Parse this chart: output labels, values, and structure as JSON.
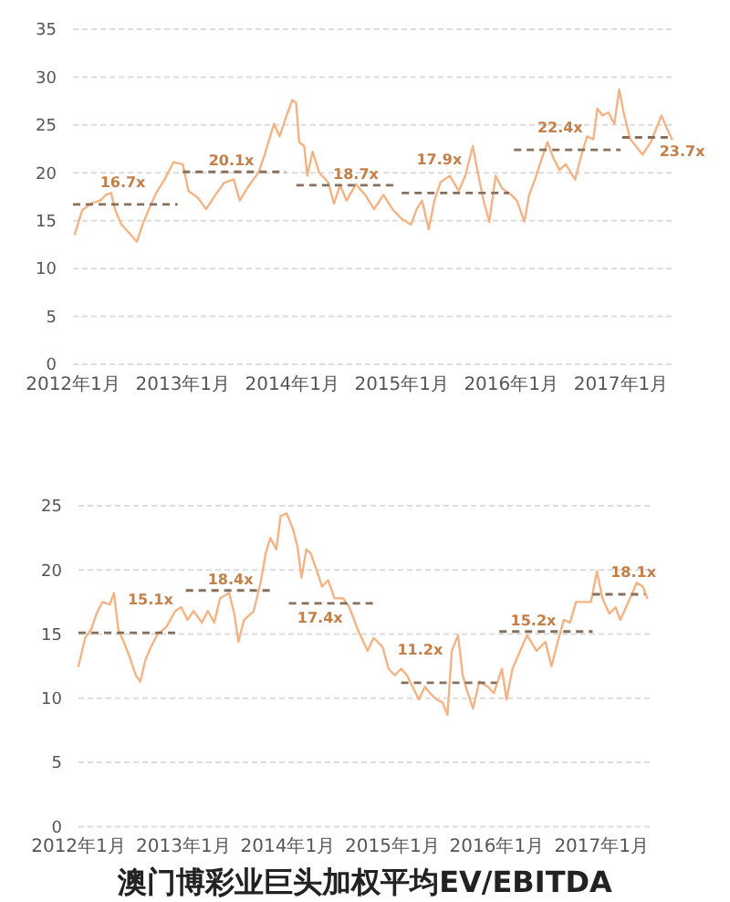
{
  "chart_data": [
    {
      "type": "line",
      "xlim": [
        "2012-01-01",
        "2017-07-01"
      ],
      "xticks": [
        {
          "value": "2012-01-01",
          "label": "2012年1月"
        },
        {
          "value": "2013-01-01",
          "label": "2013年1月"
        },
        {
          "value": "2014-01-01",
          "label": "2014年1月"
        },
        {
          "value": "2015-01-01",
          "label": "2015年1月"
        },
        {
          "value": "2016-01-01",
          "label": "2016年1月"
        },
        {
          "value": "2017-01-01",
          "label": "2017年1月"
        }
      ],
      "ylim": [
        0,
        35
      ],
      "yticks": [
        0,
        5,
        10,
        15,
        20,
        25,
        30,
        35
      ],
      "grid": "y",
      "series": [
        {
          "color": "#f4b385",
          "x": [
            "2012-01-07",
            "2012-02-01",
            "2012-03-01",
            "2012-04-01",
            "2012-04-20",
            "2012-05-07",
            "2012-05-20",
            "2012-06-10",
            "2012-07-01",
            "2012-08-01",
            "2012-08-20",
            "2012-09-10",
            "2012-10-01",
            "2012-11-01",
            "2012-12-01",
            "2013-01-01",
            "2013-01-20",
            "2013-02-20",
            "2013-03-20",
            "2013-04-20",
            "2013-05-20",
            "2013-06-20",
            "2013-07-10",
            "2013-08-10",
            "2013-09-10",
            "2013-10-01",
            "2013-11-01",
            "2013-11-20",
            "2013-12-10",
            "2014-01-01",
            "2014-01-14",
            "2014-01-24",
            "2014-02-10",
            "2014-02-20",
            "2014-03-10",
            "2014-04-01",
            "2014-05-01",
            "2014-05-20",
            "2014-06-10",
            "2014-07-01",
            "2014-08-01",
            "2014-09-01",
            "2014-10-01",
            "2014-11-01",
            "2014-12-01",
            "2015-01-01",
            "2015-02-01",
            "2015-02-20",
            "2015-03-10",
            "2015-04-01",
            "2015-04-20",
            "2015-05-10",
            "2015-06-10",
            "2015-07-10",
            "2015-08-01",
            "2015-08-26",
            "2015-09-10",
            "2015-10-01",
            "2015-10-20",
            "2015-11-10",
            "2015-12-01",
            "2016-01-01",
            "2016-01-20",
            "2016-02-14",
            "2016-03-01",
            "2016-03-20",
            "2016-04-10",
            "2016-05-01",
            "2016-05-20",
            "2016-06-10",
            "2016-07-01",
            "2016-08-01",
            "2016-08-20",
            "2016-09-10",
            "2016-10-01",
            "2016-10-14",
            "2016-11-01",
            "2016-11-20",
            "2016-12-10",
            "2016-12-26",
            "2017-01-10",
            "2017-02-01",
            "2017-02-20",
            "2017-03-14",
            "2017-04-10",
            "2017-05-01",
            "2017-05-16",
            "2017-06-01",
            "2017-06-20"
          ],
          "values": [
            13.6,
            16.1,
            16.8,
            17.1,
            17.7,
            17.9,
            16.2,
            14.6,
            13.9,
            12.8,
            14.6,
            16.2,
            17.7,
            19.3,
            21.1,
            20.9,
            18.1,
            17.4,
            16.2,
            17.7,
            19.0,
            19.3,
            17.1,
            18.7,
            20.0,
            21.9,
            25.1,
            23.8,
            25.7,
            27.6,
            27.3,
            23.2,
            22.8,
            19.7,
            22.2,
            20.0,
            19.0,
            16.8,
            18.7,
            17.1,
            18.8,
            17.7,
            16.2,
            17.7,
            16.2,
            15.2,
            14.6,
            16.2,
            17.1,
            14.1,
            17.1,
            19.0,
            19.7,
            18.1,
            19.7,
            22.8,
            20.3,
            17.1,
            14.9,
            19.7,
            18.4,
            17.7,
            17.1,
            14.9,
            17.7,
            19.3,
            21.3,
            23.2,
            21.6,
            20.3,
            20.9,
            19.3,
            21.6,
            23.8,
            23.5,
            26.7,
            26.0,
            26.3,
            25.1,
            28.7,
            26.3,
            23.5,
            22.8,
            21.9,
            23.2,
            24.8,
            26.0,
            24.8,
            23.5
          ]
        },
        {
          "color": "#86705d",
          "line_style": "dashed",
          "x": [
            "2012-01-01",
            "2012-12-15"
          ],
          "values": [
            16.7,
            16.7
          ]
        },
        {
          "color": "#86705d",
          "line_style": "dashed",
          "x": [
            "2013-01-01",
            "2013-12-10"
          ],
          "values": [
            20.1,
            20.1
          ]
        },
        {
          "color": "#86705d",
          "line_style": "dashed",
          "x": [
            "2014-01-15",
            "2014-12-10"
          ],
          "values": [
            18.7,
            18.7
          ]
        },
        {
          "color": "#86705d",
          "line_style": "dashed",
          "x": [
            "2015-01-01",
            "2015-12-25"
          ],
          "values": [
            17.9,
            17.9
          ]
        },
        {
          "color": "#86705d",
          "line_style": "dashed",
          "x": [
            "2016-01-10",
            "2016-12-31"
          ],
          "values": [
            22.4,
            22.4
          ]
        },
        {
          "color": "#86705d",
          "line_style": "dashed",
          "x": [
            "2017-01-05",
            "2017-06-20"
          ],
          "values": [
            23.7,
            23.7
          ]
        }
      ],
      "annotations": [
        {
          "text": "16.7x",
          "x": "2012-06-15",
          "y": 16.7
        },
        {
          "text": "20.1x",
          "x": "2013-06-12",
          "y": 20.1
        },
        {
          "text": "18.7x",
          "x": "2014-08-01",
          "y": 18.7
        },
        {
          "text": "17.9x",
          "x": "2015-07-18",
          "y": 17.9
        },
        {
          "text": "22.4x",
          "x": "2016-06-12",
          "y": 22.4
        },
        {
          "text": "23.7x",
          "x": "2017-05-12",
          "y": 23.7
        }
      ]
    },
    {
      "type": "line",
      "title": "澳门博彩业巨头加权平均EV/EBITDA",
      "xlim": [
        "2012-01-01",
        "2017-07-01"
      ],
      "xticks": [
        {
          "value": "2012-01-01",
          "label": "2012年1月"
        },
        {
          "value": "2013-01-01",
          "label": "2013年1月"
        },
        {
          "value": "2014-01-01",
          "label": "2014年1月"
        },
        {
          "value": "2015-01-01",
          "label": "2015年1月"
        },
        {
          "value": "2016-01-01",
          "label": "2016年1月"
        },
        {
          "value": "2017-01-01",
          "label": "2017年1月"
        }
      ],
      "ylim": [
        0,
        25
      ],
      "yticks": [
        0,
        5,
        10,
        15,
        20,
        25
      ],
      "grid": "y",
      "series": [
        {
          "color": "#f4b385",
          "x": [
            "2012-01-01",
            "2012-01-24",
            "2012-02-15",
            "2012-03-04",
            "2012-03-25",
            "2012-04-19",
            "2012-05-04",
            "2012-05-19",
            "2012-06-07",
            "2012-06-28",
            "2012-07-19",
            "2012-08-04",
            "2012-08-22",
            "2012-09-10",
            "2012-10-01",
            "2012-11-04",
            "2012-12-04",
            "2012-12-25",
            "2013-01-16",
            "2013-02-06",
            "2013-03-07",
            "2013-03-28",
            "2013-04-19",
            "2013-05-10",
            "2013-06-10",
            "2013-06-28",
            "2013-07-13",
            "2013-08-01",
            "2013-09-04",
            "2013-09-28",
            "2013-10-16",
            "2013-11-01",
            "2013-11-22",
            "2013-12-07",
            "2013-12-28",
            "2014-01-19",
            "2014-02-04",
            "2014-02-18",
            "2014-03-07",
            "2014-03-22",
            "2014-04-13",
            "2014-05-01",
            "2014-05-22",
            "2014-06-13",
            "2014-07-13",
            "2014-08-04",
            "2014-09-07",
            "2014-09-16",
            "2014-10-07",
            "2014-10-28",
            "2014-11-28",
            "2014-12-19",
            "2015-01-10",
            "2015-02-01",
            "2015-02-21",
            "2015-03-13",
            "2015-04-04",
            "2015-04-25",
            "2015-05-13",
            "2015-06-04",
            "2015-06-25",
            "2015-07-13",
            "2015-07-28",
            "2015-08-19",
            "2015-09-04",
            "2015-09-19",
            "2015-10-10",
            "2015-11-01",
            "2015-12-01",
            "2015-12-22",
            "2016-01-19",
            "2016-02-04",
            "2016-02-25",
            "2016-03-19",
            "2016-04-16",
            "2016-05-19",
            "2016-06-19",
            "2016-07-10",
            "2016-08-01",
            "2016-08-22",
            "2016-09-13",
            "2016-10-04",
            "2016-11-04",
            "2016-11-25",
            "2016-12-16",
            "2017-01-04",
            "2017-01-28",
            "2017-02-19",
            "2017-03-07",
            "2017-04-01",
            "2017-05-04",
            "2017-05-25",
            "2017-06-10"
          ],
          "values": [
            12.5,
            14.7,
            15.4,
            16.6,
            17.5,
            17.3,
            18.2,
            15.4,
            14.4,
            13.2,
            11.8,
            11.3,
            13.0,
            14.0,
            14.9,
            15.6,
            16.8,
            17.1,
            16.1,
            16.8,
            15.9,
            16.8,
            15.9,
            17.8,
            18.2,
            16.6,
            14.4,
            16.1,
            16.8,
            19.0,
            21.3,
            22.5,
            21.6,
            24.2,
            24.4,
            23.2,
            21.8,
            19.4,
            21.6,
            21.3,
            19.9,
            18.7,
            19.2,
            17.8,
            17.8,
            17.1,
            15.1,
            14.7,
            13.7,
            14.7,
            14.0,
            12.3,
            11.8,
            12.3,
            11.8,
            10.9,
            9.9,
            10.9,
            10.4,
            9.9,
            9.7,
            8.7,
            13.7,
            14.9,
            11.8,
            10.6,
            9.2,
            11.3,
            10.9,
            10.4,
            12.3,
            9.9,
            12.3,
            13.5,
            14.9,
            13.7,
            14.4,
            12.5,
            14.4,
            16.1,
            15.9,
            17.5,
            17.5,
            17.5,
            19.9,
            17.8,
            16.6,
            17.1,
            16.1,
            17.3,
            19.0,
            18.7,
            17.8
          ]
        },
        {
          "color": "#86705d",
          "line_style": "dashed",
          "x": [
            "2012-01-01",
            "2012-12-05"
          ],
          "values": [
            15.1,
            15.1
          ]
        },
        {
          "color": "#86705d",
          "line_style": "dashed",
          "x": [
            "2013-01-10",
            "2013-11-15"
          ],
          "values": [
            18.4,
            18.4
          ]
        },
        {
          "color": "#86705d",
          "line_style": "dashed",
          "x": [
            "2014-01-05",
            "2014-11-05"
          ],
          "values": [
            17.4,
            17.4
          ]
        },
        {
          "color": "#86705d",
          "line_style": "dashed",
          "x": [
            "2015-02-01",
            "2016-01-01"
          ],
          "values": [
            11.2,
            11.2
          ]
        },
        {
          "color": "#86705d",
          "line_style": "dashed",
          "x": [
            "2016-01-10",
            "2016-12-01"
          ],
          "values": [
            15.2,
            15.2
          ]
        },
        {
          "color": "#86705d",
          "line_style": "dashed",
          "x": [
            "2016-12-01",
            "2017-06-01"
          ],
          "values": [
            18.1,
            18.1
          ]
        }
      ],
      "annotations": [
        {
          "text": "15.1x",
          "x": "2012-08-01",
          "y": 15.1
        },
        {
          "text": "18.4x",
          "x": "2013-06-15",
          "y": 18.4
        },
        {
          "text": "17.4x",
          "x": "2014-06-01",
          "y": 17.4
        },
        {
          "text": "11.2x",
          "x": "2015-08-01",
          "y": 11.2
        },
        {
          "text": "15.2x",
          "x": "2016-06-15",
          "y": 15.2
        },
        {
          "text": "18.1x",
          "x": "2017-03-15",
          "y": 18.1
        }
      ]
    }
  ]
}
